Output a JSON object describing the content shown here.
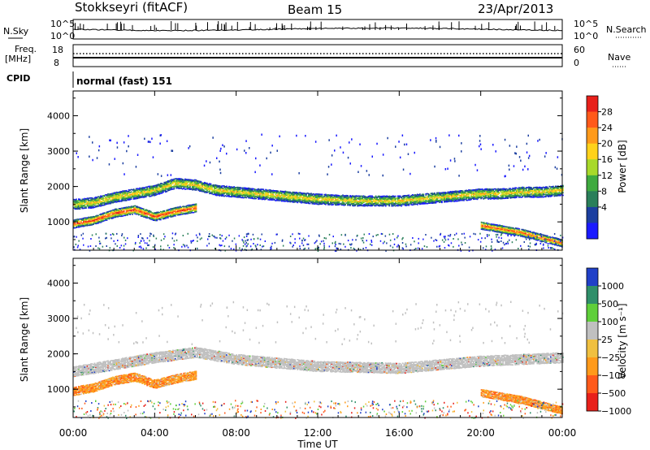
{
  "header": {
    "station": "Stokkseyri (fitACF)",
    "beam": "Beam 15",
    "date": "23/Apr/2013"
  },
  "strip": {
    "nsky_label": "N.Sky",
    "nsky_ticks": [
      "10^5",
      "10^0"
    ],
    "nsearch_label": "N.Search",
    "freq_label_1": "Freq.",
    "freq_label_2": "[MHz]",
    "freq_ticks": [
      "18",
      "8"
    ],
    "nave_label": "Nave",
    "nave_ticks": [
      "60",
      "0"
    ],
    "cpid_label": "CPID",
    "cpid_value": "normal (fast) 151"
  },
  "x_axis": {
    "label": "Time UT",
    "ticks": [
      "00:00",
      "04:00",
      "08:00",
      "12:00",
      "16:00",
      "20:00",
      "00:00"
    ]
  },
  "power_panel": {
    "ylabel": "Slant Range [km]",
    "yticks": [
      "4000",
      "3000",
      "2000",
      "1000"
    ],
    "colorbar_label": "Power [dB]",
    "colorbar_ticks": [
      "28",
      "24",
      "20",
      "16",
      "12",
      "8",
      "4"
    ],
    "colors": [
      "#1a1aff",
      "#1c3fa0",
      "#2a7f5a",
      "#3faa3f",
      "#a8d92a",
      "#ffd21a",
      "#ff9a1a",
      "#ff5a1a",
      "#e8201a"
    ]
  },
  "velocity_panel": {
    "ylabel": "Slant Range [km]",
    "yticks": [
      "4000",
      "3000",
      "2000",
      "1000"
    ],
    "colorbar_label": "Velocity [m s⁻¹]",
    "colorbar_ticks": [
      "1000",
      "500",
      "100",
      "25",
      "−25",
      "−100",
      "−500",
      "−1000"
    ],
    "colors": [
      "#2040c8",
      "#2f8f6a",
      "#5fcf3a",
      "#c0c0c0",
      "#f0c040",
      "#ff9a1a",
      "#ff5a1a",
      "#e8201a"
    ]
  },
  "chart_data": [
    {
      "type": "heatmap",
      "title": "Power",
      "xlabel": "Time UT",
      "ylabel": "Slant Range [km]",
      "xlim": [
        0,
        24
      ],
      "ylim": [
        200,
        4700
      ],
      "colorbar": {
        "label": "Power [dB]",
        "ticks": [
          4,
          8,
          12,
          16,
          20,
          24,
          28
        ]
      },
      "bands": [
        {
          "name": "main",
          "x": [
            0.0,
            1.0,
            2.0,
            3.0,
            4.0,
            5.0,
            6.0,
            7.0,
            8.0,
            10.0,
            12.0,
            14.0,
            16.0,
            18.0,
            20.0,
            21.0,
            22.0,
            23.0,
            24.0
          ],
          "y": [
            1500,
            1550,
            1700,
            1800,
            1900,
            2100,
            2050,
            1900,
            1850,
            1750,
            1650,
            1600,
            1600,
            1700,
            1800,
            1800,
            1850,
            1850,
            1900
          ],
          "width": 300,
          "peak_db": 20
        },
        {
          "name": "lower",
          "x": [
            0.0,
            1.0,
            2.0,
            3.0,
            4.0,
            5.0,
            6.0
          ],
          "y": [
            950,
            1050,
            1250,
            1350,
            1150,
            1300,
            1400
          ],
          "width": 250,
          "peak_db": 28
        },
        {
          "name": "evening",
          "x": [
            20.0,
            21.0,
            22.0,
            23.0,
            24.0
          ],
          "y": [
            900,
            800,
            700,
            550,
            400
          ],
          "width": 220,
          "peak_db": 26
        }
      ]
    },
    {
      "type": "heatmap",
      "title": "Velocity",
      "xlabel": "Time UT",
      "ylabel": "Slant Range [km]",
      "xlim": [
        0,
        24
      ],
      "ylim": [
        200,
        4700
      ],
      "colorbar": {
        "label": "Velocity [m s⁻¹]",
        "ticks": [
          1000,
          500,
          100,
          25,
          -25,
          -100,
          -500,
          -1000
        ]
      },
      "bands": [
        {
          "name": "main",
          "x": [
            0.0,
            2.0,
            4.0,
            6.0,
            8.0,
            12.0,
            16.0,
            20.0,
            24.0
          ],
          "y": [
            1500,
            1700,
            1900,
            2050,
            1850,
            1650,
            1600,
            1800,
            1900
          ],
          "width": 300,
          "velocity": 0
        },
        {
          "name": "lower",
          "x": [
            0.0,
            1.0,
            2.0,
            3.0,
            4.0,
            5.0,
            6.0
          ],
          "y": [
            950,
            1050,
            1250,
            1350,
            1150,
            1300,
            1400
          ],
          "width": 250,
          "velocity": -200
        },
        {
          "name": "evening",
          "x": [
            20.0,
            21.0,
            22.0,
            23.0,
            24.0
          ],
          "y": [
            900,
            800,
            700,
            550,
            400
          ],
          "width": 220,
          "velocity": -300
        }
      ]
    }
  ]
}
